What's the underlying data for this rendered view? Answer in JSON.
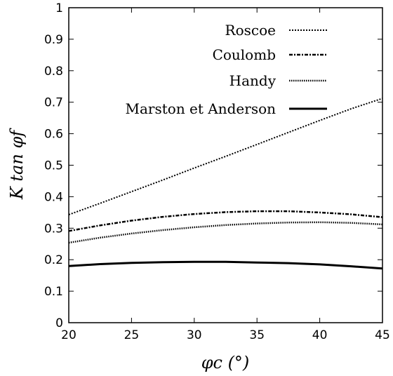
{
  "chart_data": {
    "type": "line",
    "title": "",
    "xlabel": "φc (°)",
    "ylabel": "K tan φf",
    "xlim": [
      20,
      45
    ],
    "ylim": [
      0,
      1
    ],
    "xticks": [
      20,
      25,
      30,
      35,
      40,
      45
    ],
    "yticks": [
      0,
      0.1,
      0.2,
      0.3,
      0.4,
      0.5,
      0.6,
      0.7,
      0.8,
      0.9,
      1
    ],
    "grid": false,
    "legend_position": "top-right",
    "x": [
      20,
      22.5,
      25,
      27.5,
      30,
      32.5,
      35,
      37.5,
      40,
      42.5,
      45
    ],
    "series": [
      {
        "name": "Roscoe",
        "style": "dotted",
        "color": "#000000",
        "values": [
          0.343,
          0.379,
          0.416,
          0.453,
          0.491,
          0.528,
          0.566,
          0.604,
          0.642,
          0.679,
          0.712
        ]
      },
      {
        "name": "Coulomb",
        "style": "dash-dot",
        "color": "#000000",
        "values": [
          0.291,
          0.309,
          0.324,
          0.336,
          0.345,
          0.351,
          0.354,
          0.354,
          0.35,
          0.344,
          0.335
        ]
      },
      {
        "name": "Handy",
        "style": "dense-dotted",
        "color": "#000000",
        "values": [
          0.254,
          0.27,
          0.283,
          0.294,
          0.303,
          0.31,
          0.315,
          0.318,
          0.319,
          0.317,
          0.312
        ]
      },
      {
        "name": "Marston et Anderson",
        "style": "solid",
        "color": "#000000",
        "values": [
          0.18,
          0.186,
          0.19,
          0.192,
          0.193,
          0.193,
          0.191,
          0.189,
          0.185,
          0.179,
          0.172
        ]
      }
    ]
  }
}
